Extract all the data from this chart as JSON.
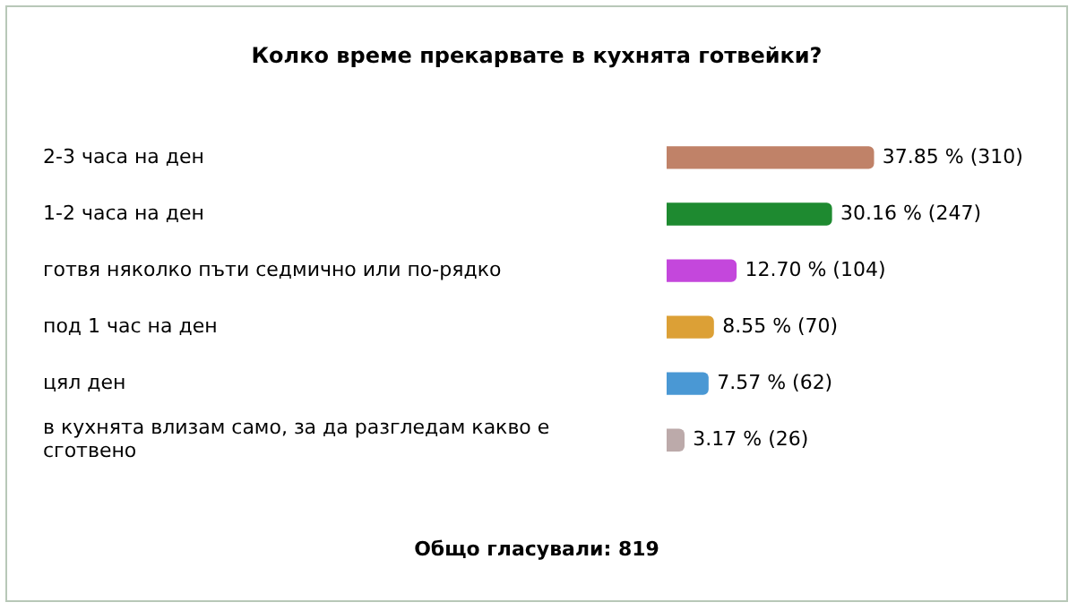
{
  "chart_data": {
    "type": "bar",
    "orientation": "horizontal",
    "title": "Колко време прекарвате в кухнята готвейки?",
    "categories": [
      "2-3 часа на ден",
      "1-2 часа на ден",
      "готвя няколко пъти седмично или по-рядко",
      "под 1 час на ден",
      "цял ден",
      "в кухнята влизам само, за да разгледам какво е сготвено"
    ],
    "values": [
      37.85,
      30.16,
      12.7,
      8.55,
      7.57,
      3.17
    ],
    "colors": [
      "#c08268",
      "#1e8a30",
      "#c447dc",
      "#dca036",
      "#4a98d4",
      "#bcaaaa"
    ],
    "value_labels": [
      "37.85 % (310)",
      "30.16 % (247)",
      "12.70 % (104)",
      "8.55 % (70)",
      "7.57 % (62)",
      "3.17 % (26)"
    ],
    "tick_labels": "y",
    "legend": false,
    "annotations": [
      "Общо гласували: 819"
    ]
  }
}
